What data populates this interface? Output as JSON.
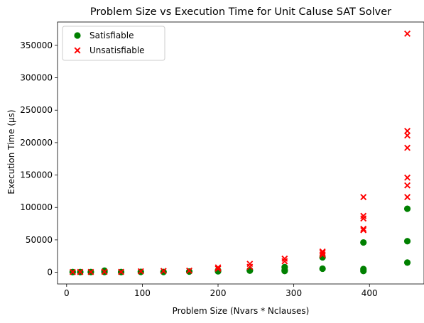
{
  "chart_data": {
    "type": "scatter",
    "title": "Problem Size vs Execution Time for Unit Caluse SAT Solver",
    "xlabel": "Problem Size (Nvars * Nclauses)",
    "ylabel": "Execution Time (μs)",
    "xlim": [
      -12,
      472
    ],
    "ylim": [
      -18000,
      386000
    ],
    "xticks": [
      0,
      100,
      200,
      300,
      400
    ],
    "yticks": [
      0,
      50000,
      100000,
      150000,
      200000,
      250000,
      300000,
      350000
    ],
    "grid": false,
    "legend_position": "top-left",
    "colors": {
      "satisfiable": "#008000",
      "unsatisfiable": "#ff0000"
    },
    "series": [
      {
        "name": "Satisfiable",
        "marker": "circle",
        "points": [
          [
            8,
            300
          ],
          [
            18,
            300
          ],
          [
            32,
            400
          ],
          [
            50,
            2500
          ],
          [
            50,
            500
          ],
          [
            72,
            300
          ],
          [
            98,
            600
          ],
          [
            128,
            500
          ],
          [
            162,
            1200
          ],
          [
            200,
            3000
          ],
          [
            200,
            1500
          ],
          [
            242,
            3500
          ],
          [
            242,
            2500
          ],
          [
            288,
            8000
          ],
          [
            288,
            3500
          ],
          [
            288,
            2000
          ],
          [
            338,
            23000
          ],
          [
            338,
            5500
          ],
          [
            392,
            46000
          ],
          [
            392,
            5000
          ],
          [
            392,
            2000
          ],
          [
            450,
            98000
          ],
          [
            450,
            48000
          ],
          [
            450,
            15000
          ]
        ]
      },
      {
        "name": "Unsatisfiable",
        "marker": "x",
        "points": [
          [
            8,
            400
          ],
          [
            18,
            500
          ],
          [
            32,
            500
          ],
          [
            50,
            800
          ],
          [
            72,
            600
          ],
          [
            98,
            1500
          ],
          [
            128,
            2000
          ],
          [
            162,
            2500
          ],
          [
            200,
            7500
          ],
          [
            200,
            5500
          ],
          [
            242,
            13000
          ],
          [
            242,
            8500
          ],
          [
            288,
            21000
          ],
          [
            288,
            17000
          ],
          [
            338,
            32000
          ],
          [
            338,
            30000
          ],
          [
            338,
            27000
          ],
          [
            392,
            116000
          ],
          [
            392,
            87000
          ],
          [
            392,
            83000
          ],
          [
            392,
            67000
          ],
          [
            392,
            65000
          ],
          [
            450,
            368000
          ],
          [
            450,
            218000
          ],
          [
            450,
            211000
          ],
          [
            450,
            192000
          ],
          [
            450,
            146000
          ],
          [
            450,
            134000
          ],
          [
            450,
            116000
          ]
        ]
      }
    ]
  }
}
